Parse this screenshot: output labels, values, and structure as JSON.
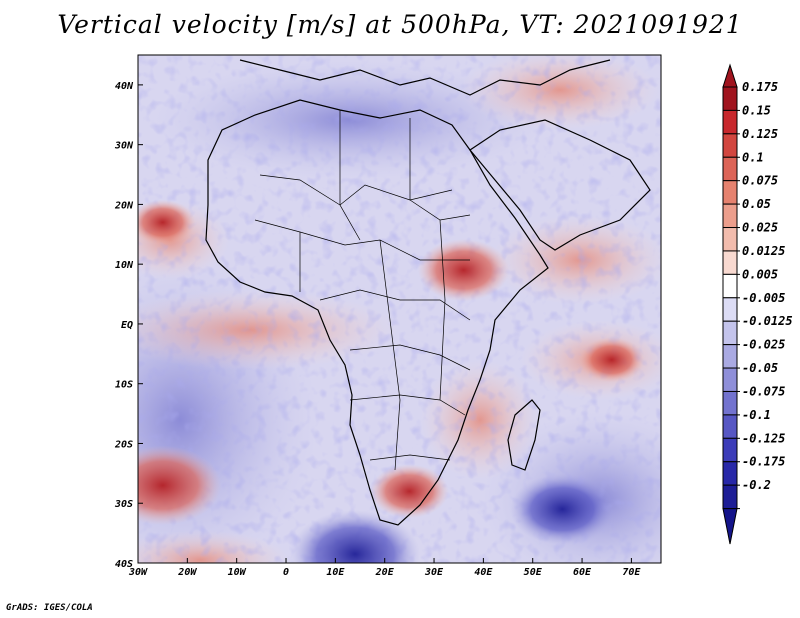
{
  "title": "Vertical velocity [m/s] at 500hPa, VT: 2021091921",
  "credit": "GrADS: IGES/COLA",
  "axes": {
    "lon_range": [
      -30,
      76
    ],
    "lat_range": [
      -40,
      45
    ],
    "x_ticks": [
      {
        "value": -30,
        "label": "30W"
      },
      {
        "value": -20,
        "label": "20W"
      },
      {
        "value": -10,
        "label": "10W"
      },
      {
        "value": 0,
        "label": "0"
      },
      {
        "value": 10,
        "label": "10E"
      },
      {
        "value": 20,
        "label": "20E"
      },
      {
        "value": 30,
        "label": "30E"
      },
      {
        "value": 40,
        "label": "40E"
      },
      {
        "value": 50,
        "label": "50E"
      },
      {
        "value": 60,
        "label": "60E"
      },
      {
        "value": 70,
        "label": "70E"
      }
    ],
    "y_ticks": [
      {
        "value": 40,
        "label": "40N"
      },
      {
        "value": 30,
        "label": "30N"
      },
      {
        "value": 20,
        "label": "20N"
      },
      {
        "value": 10,
        "label": "10N"
      },
      {
        "value": 0,
        "label": "EQ"
      },
      {
        "value": -10,
        "label": "10S"
      },
      {
        "value": -20,
        "label": "20S"
      },
      {
        "value": -30,
        "label": "30S"
      },
      {
        "value": -40,
        "label": "40S"
      }
    ]
  },
  "colorbar": {
    "labels": [
      "0.175",
      "0.15",
      "0.125",
      "0.1",
      "0.075",
      "0.05",
      "0.025",
      "0.0125",
      "0.005",
      "-0.005",
      "-0.0125",
      "-0.025",
      "-0.05",
      "-0.075",
      "-0.1",
      "-0.125",
      "-0.175",
      "-0.2"
    ],
    "colors": [
      "#a0141e",
      "#c8282d",
      "#d2463f",
      "#dc6457",
      "#e6826f",
      "#ec9e8c",
      "#f2bcad",
      "#f8d9d0",
      "#ffffff",
      "#dcdcf5",
      "#c4c4ec",
      "#aaaae3",
      "#8f8fd9",
      "#7373cf",
      "#5757c4",
      "#3c3cb8",
      "#2828a8",
      "#1e1e96",
      "#14148a"
    ]
  },
  "features": [
    {
      "name": "strong-updraft-southatlantic",
      "lon": -25,
      "lat": -27,
      "value": 0.15
    },
    {
      "name": "strong-downdraft-southafrica-sea",
      "lon": 14,
      "lat": -38.5,
      "value": -0.175
    },
    {
      "name": "strong-downdraft-indianocean",
      "lon": 56,
      "lat": -31,
      "value": -0.125
    },
    {
      "name": "updraft-ethiopia",
      "lon": 36,
      "lat": 9,
      "value": 0.1
    },
    {
      "name": "updraft-southern-africa",
      "lon": 25,
      "lat": -28,
      "value": 0.075
    },
    {
      "name": "updraft-itcz-atlantic",
      "lon": -25,
      "lat": 17,
      "value": 0.05
    },
    {
      "name": "updraft-indianocean",
      "lon": 66,
      "lat": -6,
      "value": 0.05
    }
  ]
}
